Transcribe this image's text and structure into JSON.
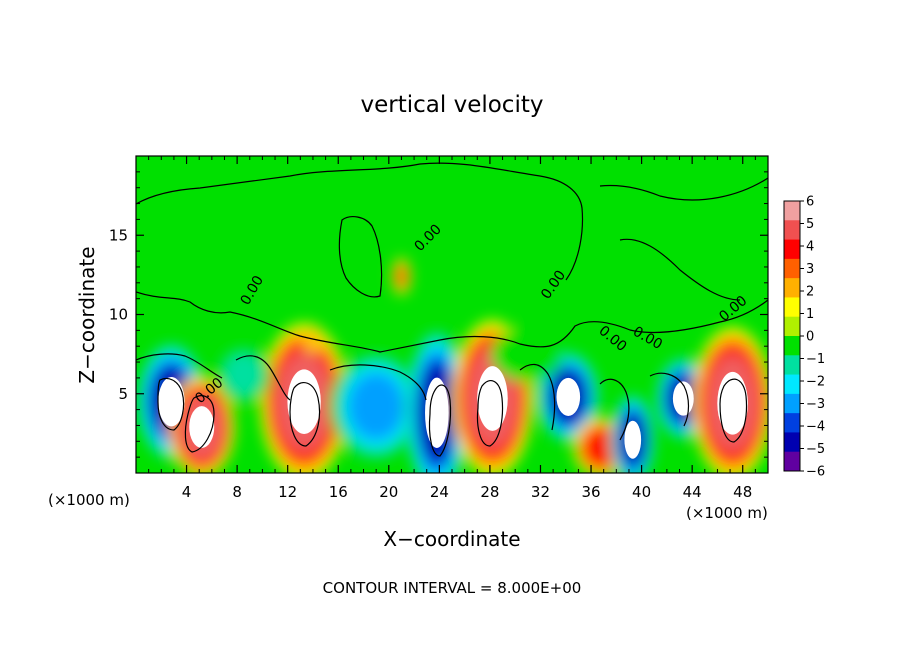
{
  "chart_data": {
    "type": "heatmap",
    "title": "vertical velocity",
    "xlabel": "X−coordinate",
    "ylabel": "Z−coordinate",
    "x_unit_label": "(×1000 m)",
    "x_unit_label_right": "(×1000 m)",
    "footer": "CONTOUR INTERVAL = 8.000E+00",
    "contour_label": "0.00",
    "xlim": [
      0,
      50
    ],
    "ylim": [
      0,
      20
    ],
    "x_ticks": [
      4,
      8,
      12,
      16,
      20,
      24,
      28,
      32,
      36,
      40,
      44,
      48
    ],
    "x_tick_labels": [
      "4",
      "8",
      "12",
      "16",
      "20",
      "24",
      "28",
      "32",
      "36",
      "40",
      "44",
      "48"
    ],
    "y_ticks": [
      5,
      10,
      15
    ],
    "y_tick_labels": [
      "5",
      "10",
      "15"
    ],
    "colorbar": {
      "min": -6,
      "max": 6,
      "ticks": [
        6,
        5,
        4,
        3,
        2,
        1,
        0,
        -1,
        -2,
        -3,
        -4,
        -5,
        -6
      ],
      "tick_labels": [
        "6",
        "5",
        "4",
        "3",
        "2",
        "1",
        "0",
        "−1",
        "−2",
        "−3",
        "−4",
        "−5",
        "−6"
      ],
      "colors": [
        "#f0a0a0",
        "#f05050",
        "#ff0000",
        "#ff6000",
        "#ffb000",
        "#ffff00",
        "#b0f000",
        "#00e000",
        "#00e0a0",
        "#00e8ff",
        "#00a0ff",
        "#0040e0",
        "#0000b0",
        "#6000a0"
      ]
    },
    "features": [
      {
        "x": 2.8,
        "z": 4.5,
        "value": -6,
        "rx": 1.9,
        "rz": 2.6
      },
      {
        "x": 5.2,
        "z": 2.9,
        "value": 6,
        "rx": 1.8,
        "rz": 2.2
      },
      {
        "x": 13.3,
        "z": 4.5,
        "value": 6,
        "rx": 2.4,
        "rz": 3.4
      },
      {
        "x": 19.0,
        "z": 4.2,
        "value": -4,
        "rx": 2.5,
        "rz": 2.4
      },
      {
        "x": 23.8,
        "z": 3.8,
        "value": -6,
        "rx": 1.7,
        "rz": 3.7
      },
      {
        "x": 28.2,
        "z": 4.7,
        "value": 6,
        "rx": 2.2,
        "rz": 3.4
      },
      {
        "x": 34.2,
        "z": 4.8,
        "value": -6,
        "rx": 1.7,
        "rz": 2.0
      },
      {
        "x": 36.8,
        "z": 1.6,
        "value": 4,
        "rx": 1.5,
        "rz": 1.3
      },
      {
        "x": 39.3,
        "z": 2.1,
        "value": -6,
        "rx": 1.2,
        "rz": 2.0
      },
      {
        "x": 43.3,
        "z": 4.7,
        "value": -6,
        "rx": 1.5,
        "rz": 1.8
      },
      {
        "x": 47.2,
        "z": 4.4,
        "value": 6,
        "rx": 2.2,
        "rz": 3.3
      },
      {
        "x": 21.0,
        "z": 12.4,
        "value": 3,
        "rx": 0.5,
        "rz": 0.8
      },
      {
        "x": 14.0,
        "z": 8.5,
        "value": 2,
        "rx": 0.5,
        "rz": 0.6
      },
      {
        "x": 8.5,
        "z": 6.2,
        "value": -2,
        "rx": 1.5,
        "rz": 1.3
      },
      {
        "x": 31.0,
        "z": 7.5,
        "value": -1,
        "rx": 2.0,
        "rz": 1.2
      }
    ]
  }
}
